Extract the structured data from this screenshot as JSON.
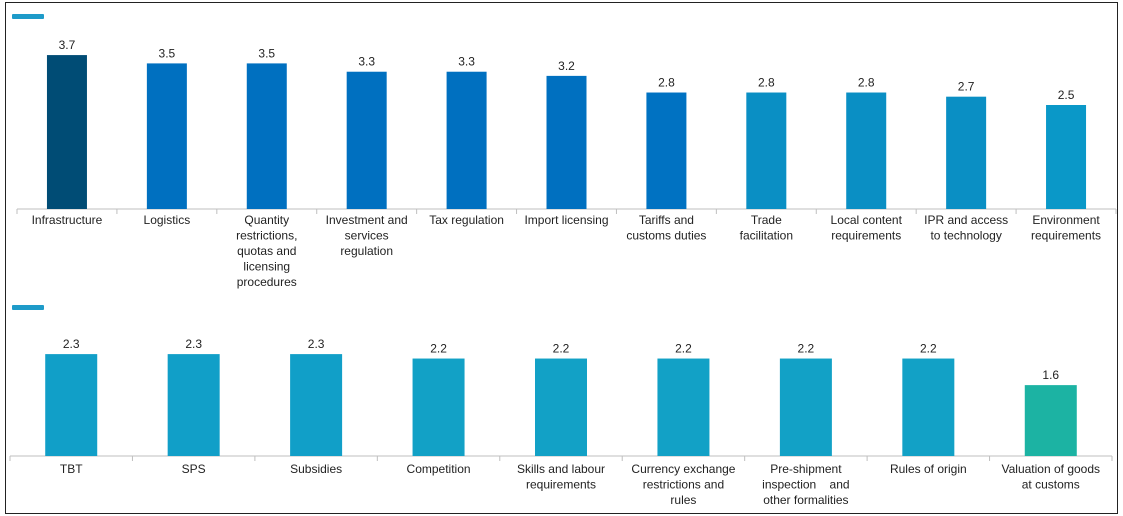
{
  "colors": {
    "legend": "#1e9bc9",
    "axis": "#bfbfbf"
  },
  "chart_data": [
    {
      "type": "bar",
      "categories": [
        "Infrastructure",
        "Logistics",
        "Quantity restrictions, quotas and licensing procedures",
        "Investment and services regulation",
        "Tax regulation",
        "Import licensing",
        "Tariffs and customs duties",
        "Trade facilitation",
        "Local content requirements",
        "IPR and access to technology",
        "Environment requirements"
      ],
      "values": [
        3.7,
        3.5,
        3.5,
        3.3,
        3.3,
        3.2,
        2.8,
        2.8,
        2.8,
        2.7,
        2.5
      ],
      "value_labels": [
        "3.7",
        "3.5",
        "3.5",
        "3.3",
        "3.3",
        "3.2",
        "2.8",
        "2.8",
        "2.8",
        "2.7",
        "2.5"
      ],
      "bar_colors": [
        "#004c75",
        "#0070c0",
        "#0070c0",
        "#0070c0",
        "#0070c0",
        "#0070c0",
        "#0072c2",
        "#0a8fc4",
        "#0a8fc4",
        "#0a8fc4",
        "#0a98c8"
      ],
      "category_lines": [
        [
          "Infrastructure"
        ],
        [
          "Logistics"
        ],
        [
          "Quantity",
          "restrictions,",
          "quotas and",
          "licensing",
          "procedures"
        ],
        [
          "Investment and",
          "services",
          "regulation"
        ],
        [
          "Tax regulation"
        ],
        [
          "Import licensing"
        ],
        [
          "Tariffs and",
          "customs duties"
        ],
        [
          "Trade",
          "facilitation"
        ],
        [
          "Local content",
          "requirements"
        ],
        [
          "IPR and access",
          "to technology"
        ],
        [
          "Environment",
          "requirements"
        ]
      ],
      "grid": false,
      "legend": "top-left"
    },
    {
      "type": "bar",
      "categories": [
        "TBT",
        "SPS",
        "Subsidies",
        "Competition",
        "Skills and labour requirements",
        "Currency exchange restrictions and rules",
        "Pre-shipment inspection and other formalities",
        "Rules of origin",
        "Valuation of goods at customs"
      ],
      "values": [
        2.3,
        2.3,
        2.3,
        2.2,
        2.2,
        2.2,
        2.2,
        2.2,
        1.6
      ],
      "value_labels": [
        "2.3",
        "2.3",
        "2.3",
        "2.2",
        "2.2",
        "2.2",
        "2.2",
        "2.2",
        "1.6"
      ],
      "bar_colors": [
        "#119fc8",
        "#119fc8",
        "#119fc8",
        "#12a1c6",
        "#12a1c6",
        "#12a1c6",
        "#12a1c6",
        "#12a1c6",
        "#1cb3a3"
      ],
      "category_lines": [
        [
          "TBT"
        ],
        [
          "SPS"
        ],
        [
          "Subsidies"
        ],
        [
          "Competition"
        ],
        [
          "Skills and labour",
          "requirements"
        ],
        [
          "Currency exchange",
          "restrictions and",
          "rules"
        ],
        [
          "Pre-shipment",
          "inspection    and",
          "other formalities"
        ],
        [
          "Rules of origin"
        ],
        [
          "Valuation of goods",
          "at customs"
        ]
      ],
      "grid": false,
      "legend": "top-left"
    }
  ]
}
